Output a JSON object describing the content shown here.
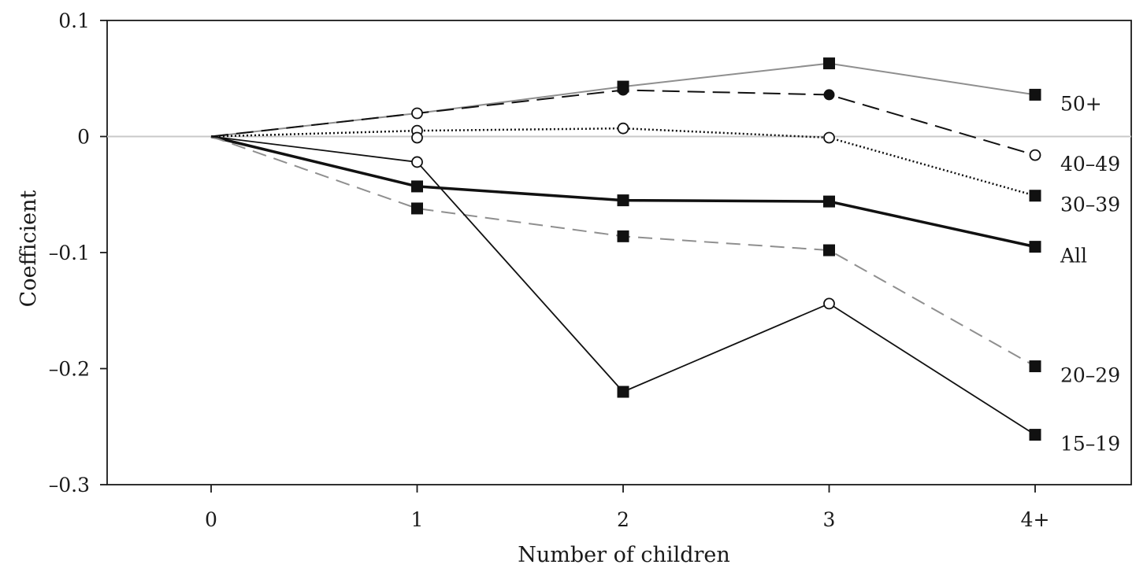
{
  "chart_data": {
    "type": "line",
    "xlabel": "Number of children",
    "ylabel": "Coefficient",
    "categories": [
      "0",
      "1",
      "2",
      "3",
      "4+"
    ],
    "ylim": [
      -0.3,
      0.1
    ],
    "yticks": [
      0.1,
      0,
      -0.1,
      -0.2,
      -0.3
    ],
    "ytick_labels": [
      "0.1",
      "0",
      "–0.1",
      "–0.2",
      "–0.3"
    ],
    "grid": false,
    "zero_line": true,
    "series": [
      {
        "name": "50+",
        "values": [
          0,
          0.02,
          0.043,
          0.063,
          0.036
        ],
        "color": "#8f8f8f",
        "stroke_width": 2,
        "dash": "",
        "markers": [
          "none",
          "none",
          "square",
          "square",
          "square"
        ]
      },
      {
        "name": "40–49",
        "values": [
          0,
          0.02,
          0.04,
          0.036,
          -0.016
        ],
        "color": "#111111",
        "stroke_width": 2,
        "dash": "22,10",
        "markers": [
          "none",
          "circle-open",
          "circle-filled",
          "circle-filled",
          "circle-open"
        ]
      },
      {
        "name": "30–39",
        "values": [
          0,
          0.005,
          0.007,
          -0.001,
          -0.051
        ],
        "color": "#111111",
        "stroke_width": 2.5,
        "dash": "2,3",
        "markers": [
          "none",
          "circle-open",
          "circle-open",
          "circle-open",
          "square"
        ]
      },
      {
        "name": "All",
        "values": [
          0,
          -0.043,
          -0.055,
          -0.056,
          -0.095
        ],
        "color": "#111111",
        "stroke_width": 3.5,
        "dash": "",
        "markers": [
          "none",
          "square",
          "square",
          "square",
          "square"
        ]
      },
      {
        "name": "20–29",
        "values": [
          0,
          -0.062,
          -0.086,
          -0.098,
          -0.198
        ],
        "color": "#8f8f8f",
        "stroke_width": 2,
        "dash": "18,10",
        "markers": [
          "none",
          "square",
          "square",
          "square",
          "square"
        ]
      },
      {
        "name": "15–19",
        "values": [
          0,
          -0.022,
          -0.22,
          -0.144,
          -0.257
        ],
        "color": "#111111",
        "stroke_width": 1.8,
        "dash": "",
        "markers": [
          "none",
          "circle-open",
          "square",
          "circle-open",
          "square"
        ]
      }
    ],
    "extra_points": [
      {
        "x_index": 1,
        "value": -0.001,
        "marker": "circle-open"
      }
    ]
  }
}
